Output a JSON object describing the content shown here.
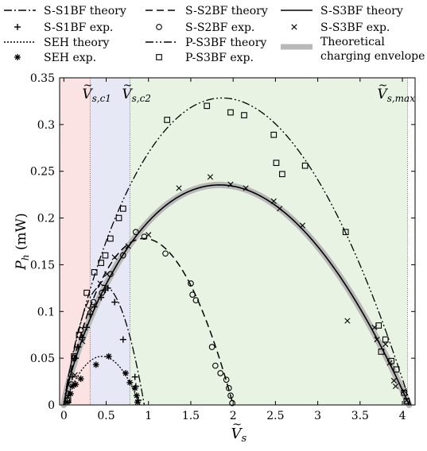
{
  "chart_data": {
    "type": "line",
    "xlabel_base": "V",
    "xlabel_sub": "s",
    "ylabel_base": "P",
    "ylabel_sub": "h",
    "ylabel_unit": " (mW)",
    "xlim": [
      -0.05,
      4.15
    ],
    "ylim": [
      0,
      0.35
    ],
    "xticks": [
      0,
      0.5,
      1,
      1.5,
      2,
      2.5,
      3,
      3.5,
      4
    ],
    "xtick_labels": [
      "0",
      "0.5",
      "1",
      "1.5",
      "2",
      "2.5",
      "3",
      "3.5",
      "4"
    ],
    "yticks": [
      0,
      0.05,
      0.1,
      0.15,
      0.2,
      0.25,
      0.3,
      0.35
    ],
    "ytick_labels": [
      "0",
      "0.05",
      "0.1",
      "0.15",
      "0.2",
      "0.25",
      "0.3",
      "0.35"
    ],
    "regions": [
      {
        "x0": -0.05,
        "x1": 0.31,
        "color": "#fbe3e3"
      },
      {
        "x0": 0.31,
        "x1": 0.78,
        "color": "#e6e8f5"
      },
      {
        "x0": 0.78,
        "x1": 4.06,
        "color": "#e9f3e3"
      }
    ],
    "vlines": [
      {
        "x": 0.31,
        "label_base": "V",
        "label_sub": "s,c1"
      },
      {
        "x": 0.78,
        "label_base": "V",
        "label_sub": "s,c2"
      },
      {
        "x": 4.06,
        "label_base": "V",
        "label_sub": "s,max"
      }
    ],
    "legend": [
      {
        "label": "S-S1BF theory",
        "kind": "line",
        "dash": "10,3,2,3"
      },
      {
        "label": "S-S2BF theory",
        "kind": "line",
        "dash": "9,5"
      },
      {
        "label": "S-S3BF theory",
        "kind": "line",
        "dash": ""
      },
      {
        "label": "S-S1BF exp.",
        "kind": "marker",
        "marker": "plus"
      },
      {
        "label": "S-S2BF exp.",
        "kind": "marker",
        "marker": "circle"
      },
      {
        "label": "S-S3BF exp.",
        "kind": "marker",
        "marker": "x"
      },
      {
        "label": "SEH theory",
        "kind": "line",
        "dash": "2,2"
      },
      {
        "label": "P-S3BF theory",
        "kind": "line",
        "dash": "10,3,2,3,2,3"
      },
      {
        "label": "Theoretical",
        "label2": "charging envelope",
        "kind": "band"
      },
      {
        "label": "SEH exp.",
        "kind": "marker",
        "marker": "star"
      },
      {
        "label": "P-S3BF exp.",
        "kind": "marker",
        "marker": "square"
      }
    ],
    "series": [
      {
        "name": "S-S1BF theory",
        "kind": "curve",
        "vs": 0.95,
        "pmax": 0.128,
        "skew": 0.05,
        "dash": "10,3,2,3",
        "width": 1.3
      },
      {
        "name": "S-S2BF theory",
        "kind": "curve",
        "vs": 2.0,
        "pmax": 0.178,
        "skew": 0.1,
        "dash": "9,5",
        "width": 1.5
      },
      {
        "name": "S-S3BF theory",
        "kind": "curve",
        "vs": 4.08,
        "pmax": 0.235,
        "skew": 0.18,
        "dash": "",
        "width": 1.6
      },
      {
        "name": "SEH theory",
        "kind": "curve",
        "vs": 0.9,
        "pmax": 0.052,
        "skew": 0.0,
        "dash": "2,2",
        "width": 1.3
      },
      {
        "name": "P-S3BF theory",
        "kind": "curve",
        "vs": 4.1,
        "pmax": 0.328,
        "skew": 0.16,
        "dash": "10,3,2,3,2,3",
        "width": 1.3
      },
      {
        "name": "S-S1BF exp.",
        "kind": "points",
        "marker": "plus",
        "points": [
          [
            0.05,
            0.01
          ],
          [
            0.1,
            0.03
          ],
          [
            0.14,
            0.05
          ],
          [
            0.17,
            0.062
          ],
          [
            0.22,
            0.072
          ],
          [
            0.27,
            0.083
          ],
          [
            0.31,
            0.097
          ],
          [
            0.36,
            0.105
          ],
          [
            0.44,
            0.115
          ],
          [
            0.49,
            0.123
          ],
          [
            0.52,
            0.125
          ],
          [
            0.6,
            0.11
          ],
          [
            0.7,
            0.07
          ],
          [
            0.84,
            0.03
          ],
          [
            0.85,
            0.02
          ],
          [
            0.88,
            0.005
          ]
        ]
      },
      {
        "name": "S-S2BF exp.",
        "kind": "points",
        "marker": "circle",
        "points": [
          [
            0.04,
            0.005
          ],
          [
            0.05,
            0.012
          ],
          [
            0.09,
            0.022
          ],
          [
            0.12,
            0.05
          ],
          [
            0.2,
            0.08
          ],
          [
            0.35,
            0.11
          ],
          [
            0.45,
            0.12
          ],
          [
            0.55,
            0.14
          ],
          [
            0.7,
            0.16
          ],
          [
            0.85,
            0.185
          ],
          [
            0.95,
            0.18
          ],
          [
            1.2,
            0.162
          ],
          [
            1.5,
            0.13
          ],
          [
            1.52,
            0.118
          ],
          [
            1.56,
            0.112
          ],
          [
            1.75,
            0.062
          ],
          [
            1.79,
            0.042
          ],
          [
            1.85,
            0.034
          ],
          [
            1.92,
            0.027
          ],
          [
            1.95,
            0.018
          ],
          [
            1.97,
            0.01
          ],
          [
            1.99,
            0.002
          ]
        ]
      },
      {
        "name": "S-S3BF exp.",
        "kind": "points",
        "marker": "x",
        "points": [
          [
            0.13,
            0.032
          ],
          [
            0.22,
            0.068
          ],
          [
            0.31,
            0.102
          ],
          [
            0.43,
            0.13
          ],
          [
            0.51,
            0.14
          ],
          [
            0.6,
            0.158
          ],
          [
            0.76,
            0.17
          ],
          [
            1.0,
            0.182
          ],
          [
            1.36,
            0.232
          ],
          [
            1.73,
            0.244
          ],
          [
            1.97,
            0.236
          ],
          [
            2.15,
            0.232
          ],
          [
            2.48,
            0.218
          ],
          [
            2.55,
            0.21
          ],
          [
            2.82,
            0.192
          ],
          [
            3.35,
            0.09
          ],
          [
            3.67,
            0.083
          ],
          [
            3.7,
            0.07
          ],
          [
            3.8,
            0.065
          ],
          [
            3.85,
            0.045
          ],
          [
            3.9,
            0.026
          ],
          [
            3.92,
            0.02
          ],
          [
            4.02,
            0.015
          ],
          [
            4.05,
            0.005
          ]
        ]
      },
      {
        "name": "SEH exp.",
        "kind": "points",
        "marker": "star",
        "points": [
          [
            0.04,
            0.003
          ],
          [
            0.08,
            0.012
          ],
          [
            0.1,
            0.02
          ],
          [
            0.14,
            0.022
          ],
          [
            0.2,
            0.028
          ],
          [
            0.38,
            0.043
          ],
          [
            0.53,
            0.052
          ],
          [
            0.73,
            0.034
          ],
          [
            0.78,
            0.024
          ],
          [
            0.84,
            0.018
          ],
          [
            0.86,
            0.01
          ],
          [
            0.87,
            0.003
          ]
        ]
      },
      {
        "name": "P-S3BF exp.",
        "kind": "points",
        "marker": "square",
        "points": [
          [
            0.05,
            0.005
          ],
          [
            0.12,
            0.052
          ],
          [
            0.18,
            0.075
          ],
          [
            0.27,
            0.12
          ],
          [
            0.36,
            0.142
          ],
          [
            0.44,
            0.152
          ],
          [
            0.49,
            0.16
          ],
          [
            0.55,
            0.178
          ],
          [
            0.65,
            0.2
          ],
          [
            0.7,
            0.21
          ],
          [
            1.22,
            0.305
          ],
          [
            1.69,
            0.32
          ],
          [
            1.97,
            0.313
          ],
          [
            2.13,
            0.31
          ],
          [
            2.48,
            0.289
          ],
          [
            2.51,
            0.259
          ],
          [
            2.58,
            0.247
          ],
          [
            2.85,
            0.256
          ],
          [
            3.33,
            0.185
          ],
          [
            3.72,
            0.085
          ],
          [
            3.75,
            0.057
          ],
          [
            3.8,
            0.07
          ],
          [
            3.87,
            0.047
          ],
          [
            3.93,
            0.038
          ],
          [
            4.02,
            0.013
          ],
          [
            4.05,
            0.004
          ]
        ]
      }
    ]
  }
}
